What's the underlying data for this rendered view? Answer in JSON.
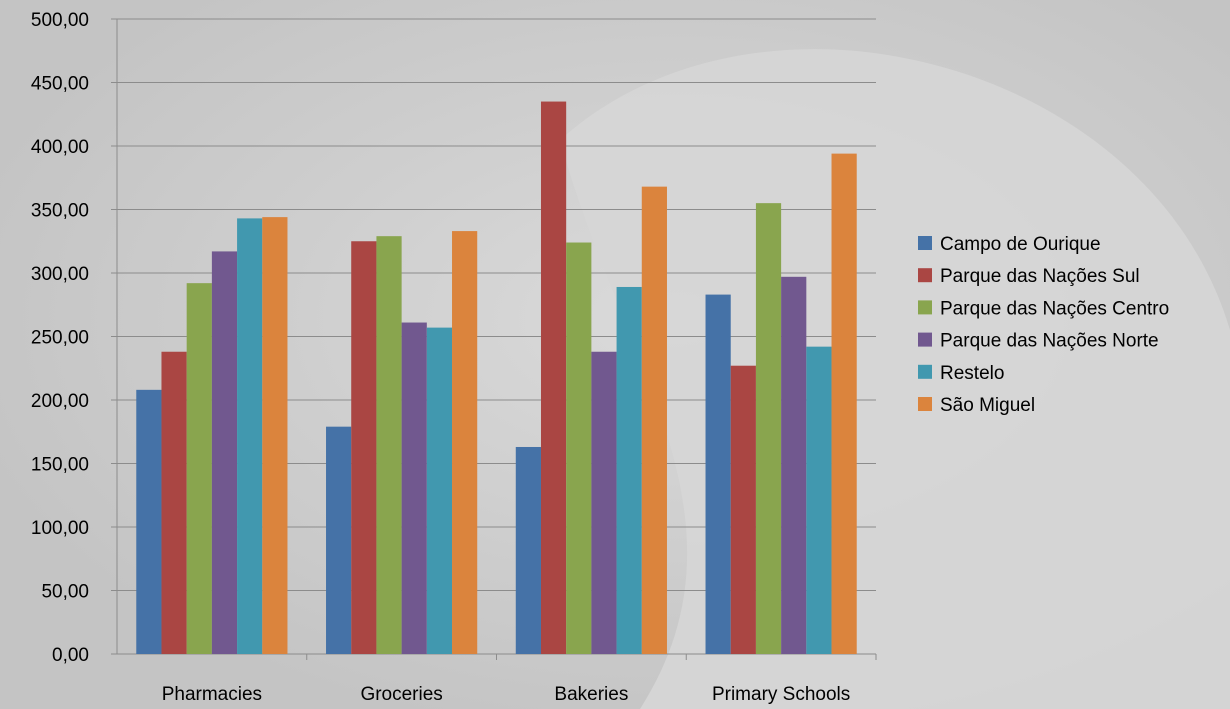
{
  "chart_data": {
    "type": "bar",
    "categories": [
      "Pharmacies",
      "Groceries",
      "Bakeries",
      "Primary Schools"
    ],
    "series": [
      {
        "name": "Campo de Ourique",
        "color": "#4572a7",
        "values": [
          208,
          179,
          163,
          283
        ]
      },
      {
        "name": "Parque das Nações Sul",
        "color": "#aa4643",
        "values": [
          238,
          325,
          435,
          227
        ]
      },
      {
        "name": "Parque das Nações Centro",
        "color": "#89a54e",
        "values": [
          292,
          329,
          324,
          355
        ]
      },
      {
        "name": "Parque das Nações Norte",
        "color": "#71588f",
        "values": [
          317,
          261,
          238,
          297
        ]
      },
      {
        "name": "Restelo",
        "color": "#4198af",
        "values": [
          343,
          257,
          289,
          242
        ]
      },
      {
        "name": "São Miguel",
        "color": "#db843d",
        "values": [
          344,
          333,
          368,
          394
        ]
      }
    ],
    "yticks": [
      "0,00",
      "50,00",
      "100,00",
      "150,00",
      "200,00",
      "250,00",
      "300,00",
      "350,00",
      "400,00",
      "450,00",
      "500,00"
    ],
    "ylim": [
      0,
      500
    ],
    "grid": true,
    "legend_position": "right"
  }
}
